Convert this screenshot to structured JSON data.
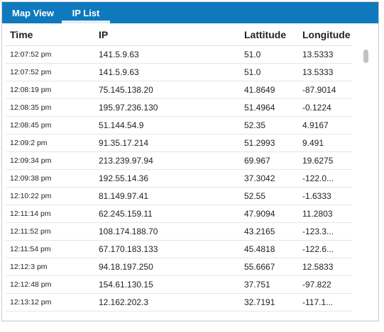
{
  "tabs": [
    {
      "label": "Map View",
      "active": false
    },
    {
      "label": "IP List",
      "active": true
    }
  ],
  "table": {
    "headers": [
      "Time",
      "IP",
      "Lattitude",
      "Longitude"
    ],
    "rows": [
      [
        "12:07:52 pm",
        "141.5.9.63",
        "51.0",
        "13.5333"
      ],
      [
        "12:07:52 pm",
        "141.5.9.63",
        "51.0",
        "13.5333"
      ],
      [
        "12:08:19 pm",
        "75.145.138.20",
        "41.8649",
        "-87.9014"
      ],
      [
        "12:08:35 pm",
        "195.97.236.130",
        "51.4964",
        "-0.1224"
      ],
      [
        "12:08:45 pm",
        "51.144.54.9",
        "52.35",
        "4.9167"
      ],
      [
        "12:09:2 pm",
        "91.35.17.214",
        "51.2993",
        "9.491"
      ],
      [
        "12:09:34 pm",
        "213.239.97.94",
        "69.967",
        "19.6275"
      ],
      [
        "12:09:38 pm",
        "192.55.14.36",
        "37.3042",
        "-122.0..."
      ],
      [
        "12:10:22 pm",
        "81.149.97.41",
        "52.55",
        "-1.6333"
      ],
      [
        "12:11:14 pm",
        "62.245.159.11",
        "47.9094",
        "11.2803"
      ],
      [
        "12:11:52 pm",
        "108.174.188.70",
        "43.2165",
        "-123.3..."
      ],
      [
        "12:11:54 pm",
        "67.170.183.133",
        "45.4818",
        "-122.6..."
      ],
      [
        "12:12:3 pm",
        "94.18.197.250",
        "55.6667",
        "12.5833"
      ],
      [
        "12:12:48 pm",
        "154.61.130.15",
        "37.751",
        "-97.822"
      ],
      [
        "12:13:12 pm",
        "12.162.202.3",
        "32.7191",
        "-117.1..."
      ]
    ]
  },
  "colors": {
    "tab_bar": "#0f79bd",
    "tab_text": "#ffffff",
    "active_tab_indicator": "#e4eef6",
    "row_divider": "#e6e6e6"
  }
}
